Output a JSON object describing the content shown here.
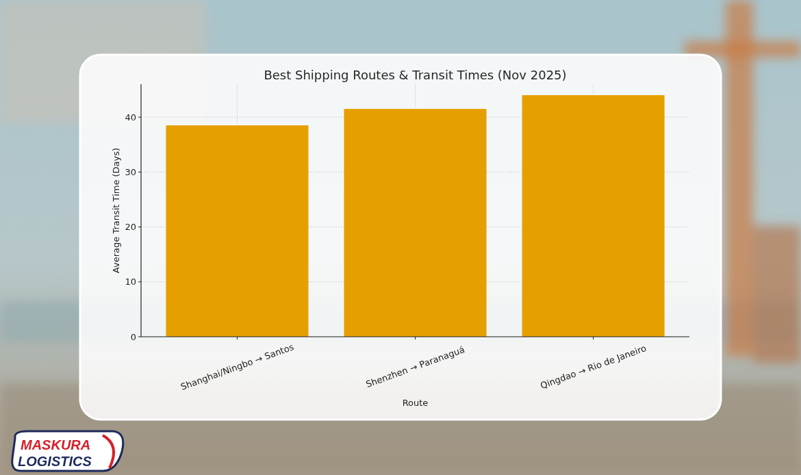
{
  "chart_data": {
    "type": "bar",
    "title": "Best Shipping Routes & Transit Times (Nov 2025)",
    "x_label": "Route",
    "y_label": "Average Transit Time (Days)",
    "categories": [
      "Shanghai/Ningbo → Santos",
      "Shenzhen → Paranaguá",
      "Qingdao → Rio de Janeiro"
    ],
    "values": [
      38.5,
      41.5,
      44
    ],
    "color": "#e69f00",
    "ylim": [
      0,
      46
    ],
    "yticks": [
      0,
      10,
      20,
      30,
      40
    ],
    "grid": true
  },
  "logo": {
    "line1": "MASKURA",
    "line2": "LOGISTICS"
  }
}
